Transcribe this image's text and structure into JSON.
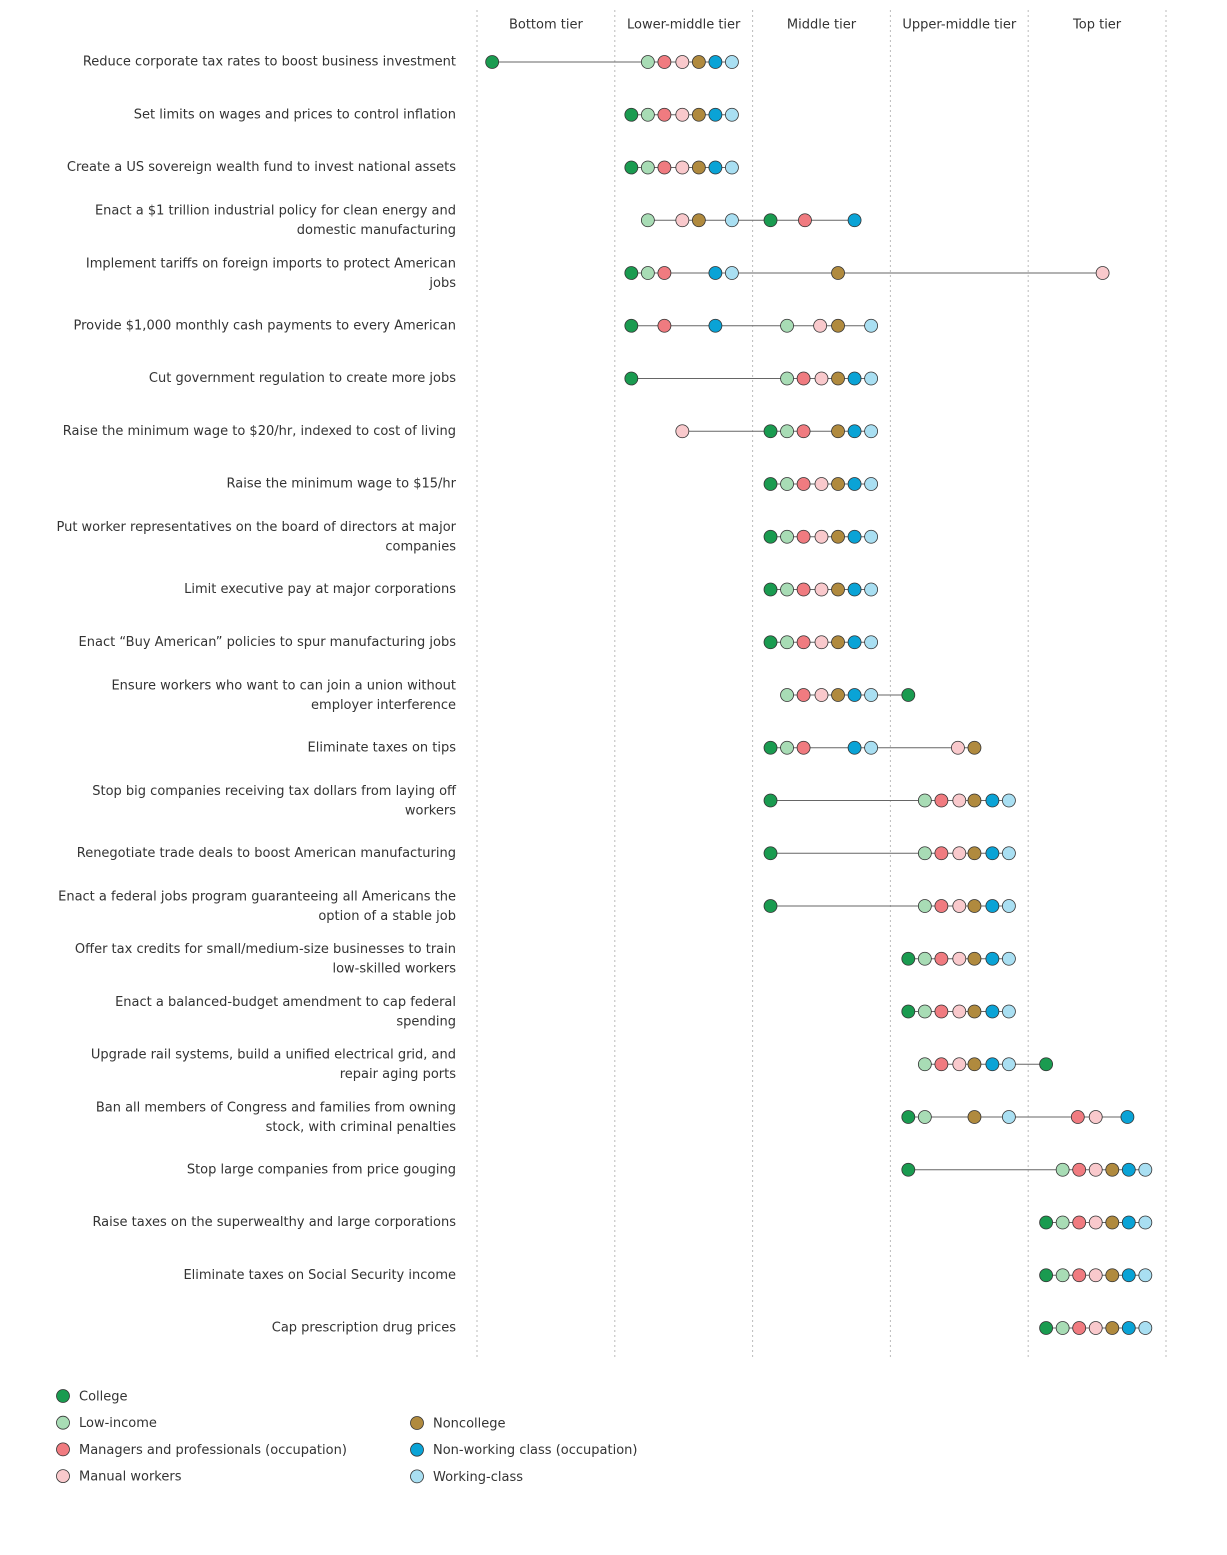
{
  "chart_data": {
    "type": "dot",
    "tiers": [
      "Bottom tier",
      "Lower-middle tier",
      "Middle tier",
      "Upper-middle tier",
      "Top tier"
    ],
    "xlim": [
      0,
      5
    ],
    "xticks": [
      0,
      1,
      2,
      3,
      4,
      5
    ],
    "grid": true,
    "legend": "bottom-left",
    "categories": [
      "Reduce corporate tax rates to boost business investment",
      "Set limits on wages and prices to control inflation",
      "Create a US sovereign wealth fund to invest national assets",
      "Enact a $1 trillion industrial policy for clean energy and domestic manufacturing",
      "Implement tariffs on foreign imports to protect American jobs",
      "Provide $1,000 monthly cash payments to every American",
      "Cut government regulation to create more jobs",
      "Raise the minimum wage to $20/hr, indexed to cost of living",
      "Raise the minimum wage to $15/hr",
      "Put worker representatives on the board of directors at major companies",
      "Limit executive pay at major corporations",
      "Enact “Buy American” policies to spur manufacturing jobs",
      "Ensure workers who want to can join a union without employer interference",
      "Eliminate taxes on tips",
      "Stop big companies receiving tax dollars from laying off workers",
      "Renegotiate trade deals to boost American manufacturing",
      "Enact a federal jobs program guaranteeing all Americans the option of a stable job",
      "Offer tax credits for small/medium-size businesses to train low-skilled workers",
      "Enact a balanced-budget amendment to cap federal spending",
      "Upgrade rail systems, build a unified electrical grid, and repair aging ports",
      "Ban all members of Congress and families from owning stock, with criminal penalties",
      "Stop large companies from price gouging",
      "Raise taxes on the superwealthy and large corporations",
      "Eliminate taxes on Social Security income",
      "Cap prescription drug prices"
    ],
    "series": [
      {
        "name": "College",
        "color": "#1a9b50",
        "values": [
          0.11,
          1.12,
          1.12,
          2.13,
          1.12,
          1.12,
          1.12,
          2.13,
          2.13,
          2.13,
          2.13,
          2.13,
          3.13,
          2.13,
          2.13,
          2.13,
          2.13,
          3.13,
          3.13,
          4.13,
          3.13,
          3.13,
          4.13,
          4.13,
          4.13
        ]
      },
      {
        "name": "Low-income",
        "color": "#a8dcb5",
        "values": [
          1.24,
          1.24,
          1.24,
          1.24,
          1.24,
          2.25,
          2.25,
          2.25,
          2.25,
          2.25,
          2.25,
          2.25,
          2.25,
          2.25,
          3.25,
          3.25,
          3.25,
          3.25,
          3.25,
          3.25,
          3.25,
          4.25,
          4.25,
          4.25,
          4.25
        ]
      },
      {
        "name": "Managers and professionals (occupation)",
        "color": "#f07b80",
        "values": [
          1.36,
          1.36,
          1.36,
          2.38,
          1.36,
          1.36,
          2.37,
          2.37,
          2.37,
          2.37,
          2.37,
          2.37,
          2.37,
          2.37,
          3.37,
          3.37,
          3.37,
          3.37,
          3.37,
          3.37,
          4.36,
          4.37,
          4.37,
          4.37,
          4.37
        ]
      },
      {
        "name": "Manual workers",
        "color": "#f9c9cc",
        "values": [
          1.49,
          1.49,
          1.49,
          1.49,
          4.54,
          2.49,
          2.5,
          1.49,
          2.5,
          2.5,
          2.5,
          2.5,
          2.5,
          3.49,
          3.5,
          3.5,
          3.5,
          3.5,
          3.5,
          3.5,
          4.49,
          4.49,
          4.49,
          4.49,
          4.49
        ]
      },
      {
        "name": "Noncollege",
        "color": "#b08a3e",
        "values": [
          1.61,
          1.61,
          1.61,
          1.61,
          2.62,
          2.62,
          2.62,
          2.62,
          2.62,
          2.62,
          2.62,
          2.62,
          2.62,
          3.61,
          3.61,
          3.61,
          3.61,
          3.61,
          3.61,
          3.61,
          3.61,
          4.61,
          4.61,
          4.61,
          4.61
        ]
      },
      {
        "name": "Non-working class (occupation)",
        "color": "#0aa3d6",
        "values": [
          1.73,
          1.73,
          1.73,
          2.74,
          1.73,
          1.73,
          2.74,
          2.74,
          2.74,
          2.74,
          2.74,
          2.74,
          2.74,
          2.74,
          3.74,
          3.74,
          3.74,
          3.74,
          3.74,
          3.74,
          4.72,
          4.73,
          4.73,
          4.73,
          4.73
        ]
      },
      {
        "name": "Working-class",
        "color": "#a9dff2",
        "values": [
          1.85,
          1.85,
          1.85,
          1.85,
          1.85,
          2.86,
          2.86,
          2.86,
          2.86,
          2.86,
          2.86,
          2.86,
          2.86,
          2.86,
          3.86,
          3.86,
          3.86,
          3.86,
          3.86,
          3.86,
          3.86,
          4.85,
          4.85,
          4.85,
          4.85
        ]
      }
    ]
  }
}
